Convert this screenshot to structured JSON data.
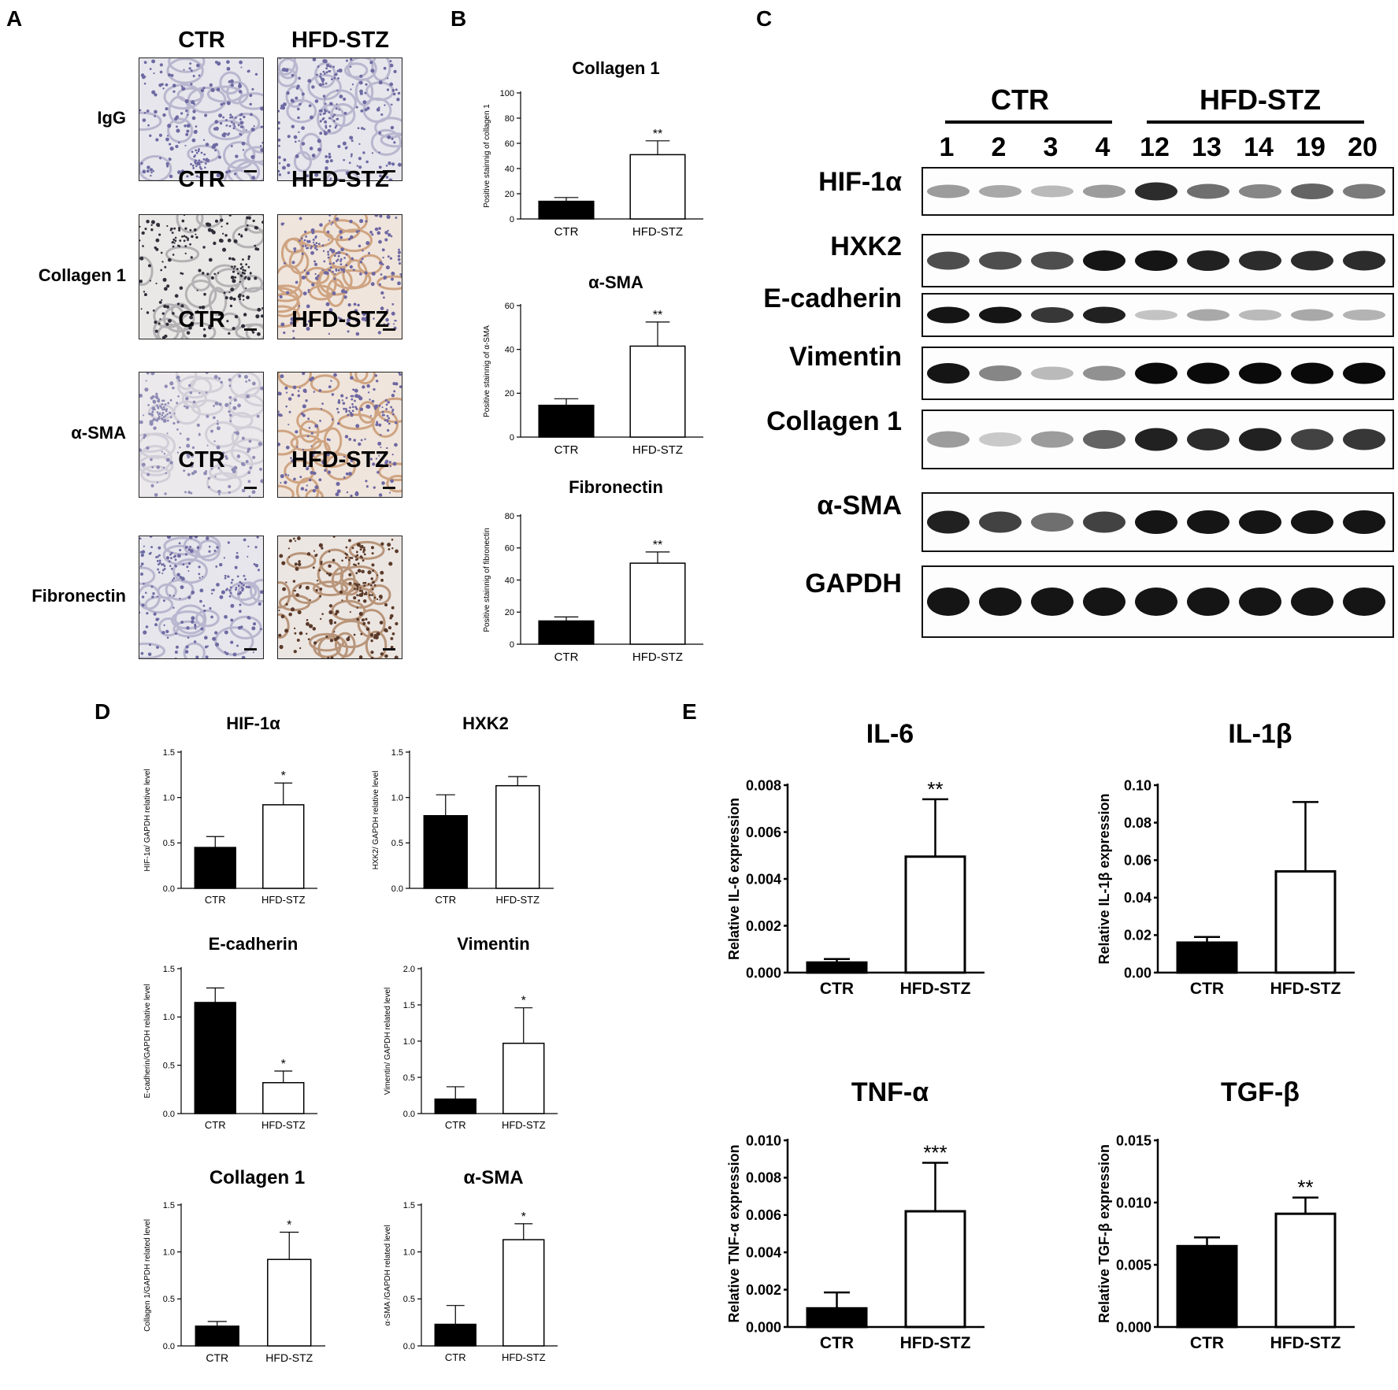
{
  "panels": {
    "A": {
      "letter": "A",
      "rows": [
        {
          "label": "IgG",
          "left": "CTR",
          "right": "HFD-STZ",
          "left_stain": "blue",
          "right_stain": "blue"
        },
        {
          "label": "Collagen 1",
          "left": "CTR",
          "right": "HFD-STZ",
          "left_stain": "dark",
          "right_stain": "brown"
        },
        {
          "label": "α-SMA",
          "left": "CTR",
          "right": "HFD-STZ",
          "left_stain": "light",
          "right_stain": "brown"
        },
        {
          "label": "Fibronectin",
          "left": "CTR",
          "right": "HFD-STZ",
          "left_stain": "blue",
          "right_stain": "darkbrown"
        }
      ]
    },
    "B": {
      "letter": "B"
    },
    "C": {
      "letter": "C",
      "groups": [
        "CTR",
        "HFD-STZ"
      ],
      "lanes": [
        "1",
        "2",
        "3",
        "4",
        "12",
        "13",
        "14",
        "19",
        "20"
      ],
      "blots": [
        {
          "label": "HIF-1α",
          "intensity": [
            0.35,
            0.3,
            0.22,
            0.35,
            0.85,
            0.55,
            0.45,
            0.6,
            0.5
          ]
        },
        {
          "label": "HXK2",
          "intensity": [
            0.7,
            0.7,
            0.7,
            0.95,
            0.95,
            0.9,
            0.85,
            0.85,
            0.85
          ]
        },
        {
          "label": "E-cadherin",
          "intensity": [
            0.95,
            0.95,
            0.8,
            0.9,
            0.18,
            0.3,
            0.22,
            0.3,
            0.25
          ]
        },
        {
          "label": "Vimentin",
          "intensity": [
            0.95,
            0.45,
            0.22,
            0.4,
            1.0,
            1.0,
            1.0,
            1.0,
            1.0
          ]
        },
        {
          "label": "Collagen 1",
          "intensity": [
            0.35,
            0.15,
            0.35,
            0.6,
            0.9,
            0.85,
            0.9,
            0.75,
            0.8
          ]
        },
        {
          "label": "α-SMA",
          "intensity": [
            0.9,
            0.75,
            0.55,
            0.75,
            0.95,
            0.95,
            0.95,
            0.95,
            0.95
          ]
        },
        {
          "label": "GAPDH",
          "intensity": [
            0.95,
            0.95,
            0.95,
            0.95,
            0.95,
            0.95,
            0.95,
            0.95,
            0.95
          ]
        }
      ]
    },
    "D": {
      "letter": "D"
    },
    "E": {
      "letter": "E"
    }
  },
  "chart_data": [
    {
      "panel": "B",
      "type": "bar",
      "title": "Collagen 1",
      "ylabel": "Positive stainnig of collagen 1",
      "categories": [
        "CTR",
        "HFD-STZ"
      ],
      "values": [
        14,
        51
      ],
      "errors": [
        3,
        11
      ],
      "ylim": [
        0,
        100
      ],
      "yticks": [
        "0",
        "20",
        "40",
        "60",
        "80",
        "100"
      ],
      "significance": [
        "",
        "**"
      ]
    },
    {
      "panel": "B",
      "type": "bar",
      "title": "α-SMA",
      "ylabel": "Positive stainnig of α-SMA",
      "categories": [
        "CTR",
        "HFD-STZ"
      ],
      "values": [
        14.5,
        41.5
      ],
      "errors": [
        3,
        11
      ],
      "ylim": [
        0,
        60
      ],
      "yticks": [
        "0",
        "20",
        "40",
        "60"
      ],
      "significance": [
        "",
        "**"
      ]
    },
    {
      "panel": "B",
      "type": "bar",
      "title": "Fibronectin",
      "ylabel": "Positive stainnig of fibronectin",
      "categories": [
        "CTR",
        "HFD-STZ"
      ],
      "values": [
        14.5,
        50.5
      ],
      "errors": [
        2.5,
        7
      ],
      "ylim": [
        0,
        80
      ],
      "yticks": [
        "0",
        "20",
        "40",
        "60",
        "80"
      ],
      "significance": [
        "",
        "**"
      ]
    },
    {
      "panel": "D",
      "type": "bar",
      "title": "HIF-1α",
      "ylabel": "HIF-1α/ GAPDH relative level",
      "categories": [
        "CTR",
        "HFD-STZ"
      ],
      "values": [
        0.45,
        0.92
      ],
      "errors": [
        0.12,
        0.24
      ],
      "ylim": [
        0,
        1.5
      ],
      "yticks": [
        "0.0",
        "0.5",
        "1.0",
        "1.5"
      ],
      "significance": [
        "",
        "*"
      ]
    },
    {
      "panel": "D",
      "type": "bar",
      "title": "HXK2",
      "ylabel": "HXK2/ GAPDH relative level",
      "categories": [
        "CTR",
        "HFD-STZ"
      ],
      "values": [
        0.8,
        1.13
      ],
      "errors": [
        0.23,
        0.1
      ],
      "ylim": [
        0,
        1.5
      ],
      "yticks": [
        "0.0",
        "0.5",
        "1.0",
        "1.5"
      ],
      "significance": [
        "",
        ""
      ]
    },
    {
      "panel": "D",
      "type": "bar",
      "title": "E-cadherin",
      "ylabel": "E-cadherin/GAPDH relative level",
      "categories": [
        "CTR",
        "HFD-STZ"
      ],
      "values": [
        1.15,
        0.32
      ],
      "errors": [
        0.15,
        0.12
      ],
      "ylim": [
        0,
        1.5
      ],
      "yticks": [
        "0.0",
        "0.5",
        "1.0",
        "1.5"
      ],
      "significance": [
        "",
        "*"
      ]
    },
    {
      "panel": "D",
      "type": "bar",
      "title": "Vimentin",
      "ylabel": "Vimentin/ GAPDH related level",
      "categories": [
        "CTR",
        "HFD-STZ"
      ],
      "values": [
        0.2,
        0.97
      ],
      "errors": [
        0.17,
        0.49
      ],
      "ylim": [
        0,
        2.0
      ],
      "yticks": [
        "0.0",
        "0.5",
        "1.0",
        "1.5",
        "2.0"
      ],
      "significance": [
        "",
        "*"
      ]
    },
    {
      "panel": "D",
      "type": "bar",
      "title": "Collagen 1",
      "ylabel": "Collagen 1/GAPDH related level",
      "categories": [
        "CTR",
        "HFD-STZ"
      ],
      "values": [
        0.21,
        0.92
      ],
      "errors": [
        0.05,
        0.29
      ],
      "ylim": [
        0,
        1.5
      ],
      "yticks": [
        "0.0",
        "0.5",
        "1.0",
        "1.5"
      ],
      "significance": [
        "",
        "*"
      ]
    },
    {
      "panel": "D",
      "type": "bar",
      "title": "α-SMA",
      "ylabel": "α-SMA /GAPDH related level",
      "categories": [
        "CTR",
        "HFD-STZ"
      ],
      "values": [
        0.23,
        1.13
      ],
      "errors": [
        0.2,
        0.17
      ],
      "ylim": [
        0,
        1.5
      ],
      "yticks": [
        "0.0",
        "0.5",
        "1.0",
        "1.5"
      ],
      "significance": [
        "",
        "*"
      ]
    },
    {
      "panel": "E",
      "type": "bar",
      "title": "IL-6",
      "ylabel": "Relative IL-6 expression",
      "categories": [
        "CTR",
        "HFD-STZ"
      ],
      "values": [
        0.00043,
        0.00495
      ],
      "errors": [
        0.00015,
        0.00245
      ],
      "ylim": [
        0,
        0.008
      ],
      "yticks": [
        "0.000",
        "0.002",
        "0.004",
        "0.006",
        "0.008"
      ],
      "significance": [
        "",
        "**"
      ]
    },
    {
      "panel": "E",
      "type": "bar",
      "title": "IL-1β",
      "ylabel": "Relative IL-1β expression",
      "categories": [
        "CTR",
        "HFD-STZ"
      ],
      "values": [
        0.016,
        0.054
      ],
      "errors": [
        0.003,
        0.037
      ],
      "ylim": [
        0,
        0.1
      ],
      "yticks": [
        "0.00",
        "0.02",
        "0.04",
        "0.06",
        "0.08",
        "0.10"
      ],
      "significance": [
        "",
        ""
      ]
    },
    {
      "panel": "E",
      "type": "bar",
      "title": "TNF-α",
      "ylabel": "Relative TNF-α expression",
      "categories": [
        "CTR",
        "HFD-STZ"
      ],
      "values": [
        0.001,
        0.0062
      ],
      "errors": [
        0.00085,
        0.0026
      ],
      "ylim": [
        0,
        0.01
      ],
      "yticks": [
        "0.000",
        "0.002",
        "0.004",
        "0.006",
        "0.008",
        "0.010"
      ],
      "significance": [
        "",
        "***"
      ]
    },
    {
      "panel": "E",
      "type": "bar",
      "title": "TGF-β",
      "ylabel": "Relative TGF-β expression",
      "categories": [
        "CTR",
        "HFD-STZ"
      ],
      "values": [
        0.0065,
        0.0091
      ],
      "errors": [
        0.0007,
        0.0013
      ],
      "ylim": [
        0,
        0.015
      ],
      "yticks": [
        "0.000",
        "0.005",
        "0.010",
        "0.015"
      ],
      "significance": [
        "",
        "**"
      ]
    }
  ]
}
